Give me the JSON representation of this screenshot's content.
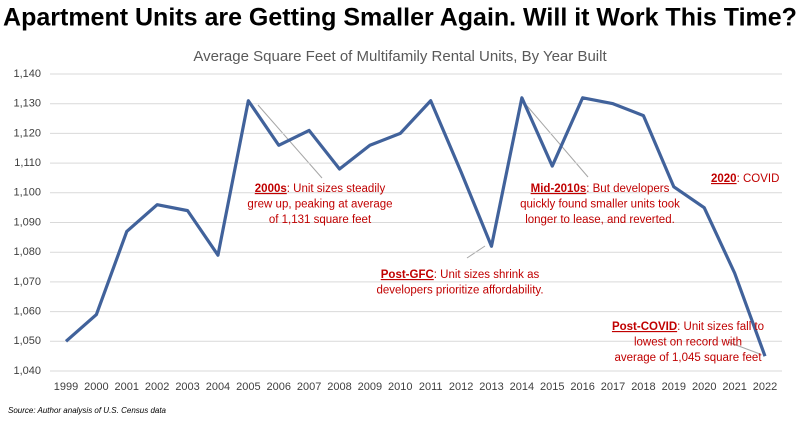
{
  "chart_data": {
    "type": "line",
    "title": "Apartment Units are Getting Smaller Again. Will it Work This Time?",
    "subtitle": "Average Square Feet of Multifamily Rental Units, By Year Built",
    "source": "Source: Author analysis of U.S. Census data",
    "categories": [
      "1999",
      "2000",
      "2001",
      "2002",
      "2003",
      "2004",
      "2005",
      "2006",
      "2007",
      "2008",
      "2009",
      "2010",
      "2011",
      "2012",
      "2013",
      "2014",
      "2015",
      "2016",
      "2017",
      "2018",
      "2019",
      "2020",
      "2021",
      "2022"
    ],
    "values": [
      1050,
      1059,
      1087,
      1096,
      1094,
      1079,
      1131,
      1116,
      1121,
      1108,
      1116,
      1120,
      1131,
      1107,
      1082,
      1132,
      1109,
      1132,
      1130,
      1126,
      1102,
      1095,
      1073,
      1045
    ],
    "color": "#41629b",
    "ylim": [
      1040,
      1140
    ],
    "yticks": [
      {
        "value": 1040,
        "label": "1,040"
      },
      {
        "value": 1050,
        "label": "1,050"
      },
      {
        "value": 1060,
        "label": "1,060"
      },
      {
        "value": 1070,
        "label": "1,070"
      },
      {
        "value": 1080,
        "label": "1,080"
      },
      {
        "value": 1090,
        "label": "1,090"
      },
      {
        "value": 1100,
        "label": "1,100"
      },
      {
        "value": 1110,
        "label": "1,110"
      },
      {
        "value": 1120,
        "label": "1,120"
      },
      {
        "value": 1130,
        "label": "1,130"
      },
      {
        "value": 1140,
        "label": "1,140"
      }
    ],
    "grid": true,
    "annotations": [
      {
        "label": "2000s",
        "lines": [
          ": Unit sizes steadily",
          "grew up, peaking at average",
          "of 1,131 square feet"
        ]
      },
      {
        "label": "Post-GFC",
        "lines": [
          ": Unit sizes shrink as",
          "developers prioritize affordability."
        ]
      },
      {
        "label": "Mid-2010s",
        "lines": [
          ": But developers",
          "quickly found smaller units took",
          "longer to lease, and reverted."
        ]
      },
      {
        "label": "2020",
        "lines": [
          ": COVID"
        ]
      },
      {
        "label": "Post-COVID",
        "lines": [
          ": Unit sizes fall to",
          "lowest on record with",
          "average of 1,045 square feet"
        ]
      }
    ]
  }
}
